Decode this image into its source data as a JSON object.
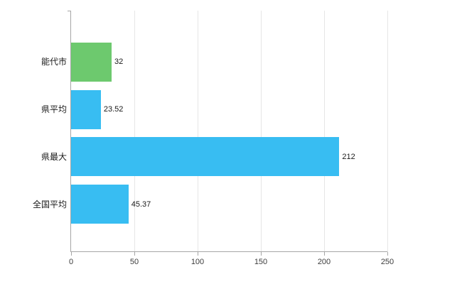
{
  "chart": {
    "background": "#ffffff",
    "axis_color": "#a6a6a6",
    "grid_color": "#e6e6e6",
    "text_color": "#1a1a1a"
  },
  "chart_data": {
    "type": "bar",
    "orientation": "horizontal",
    "title": "",
    "xlabel": "",
    "ylabel": "",
    "categories": [
      "能代市",
      "県平均",
      "県最大",
      "全国平均"
    ],
    "values": [
      32,
      23.52,
      212,
      45.37
    ],
    "value_labels": [
      "32",
      "23.52",
      "212",
      "45.37"
    ],
    "bar_colors": [
      "#6dc96e",
      "#38bdf2",
      "#38bdf2",
      "#38bdf2"
    ],
    "xlim": [
      0,
      250
    ],
    "x_ticks": [
      0,
      50,
      100,
      150,
      200,
      250
    ],
    "x_tick_labels": [
      "0",
      "50",
      "100",
      "150",
      "200",
      "250"
    ],
    "grid": "vertical",
    "legend": "none"
  }
}
